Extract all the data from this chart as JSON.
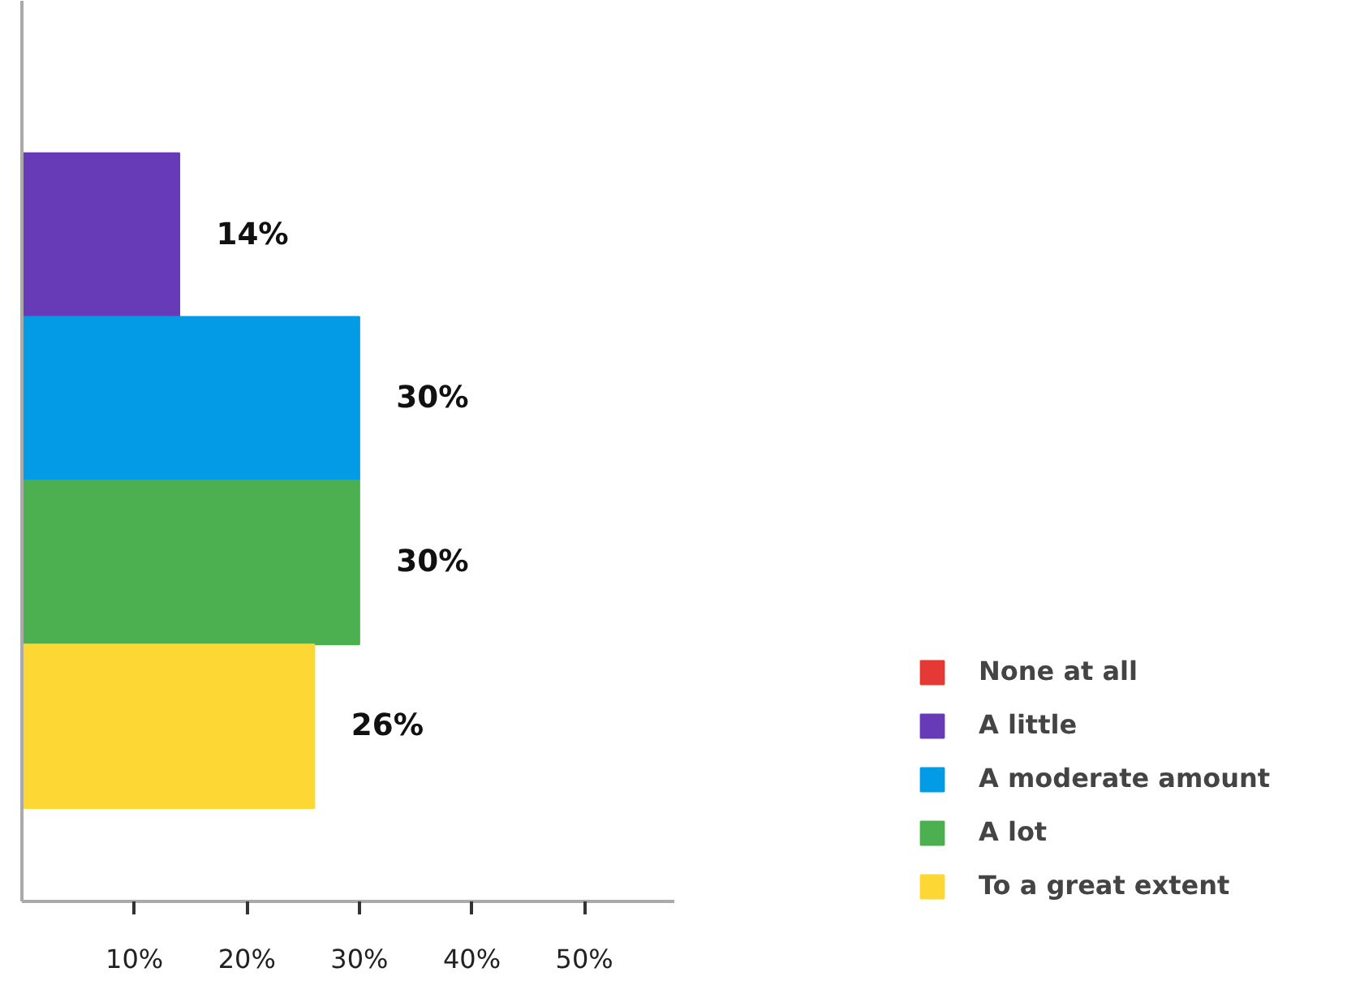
{
  "chart_data": {
    "type": "bar",
    "orientation": "horizontal",
    "categories": [
      null,
      null,
      null,
      null,
      null
    ],
    "series": [
      {
        "name": "None at all",
        "color": "#e53935",
        "values": [
          0,
          null,
          null,
          null,
          null
        ],
        "value_labels": [
          null,
          null,
          null,
          null,
          null
        ]
      },
      {
        "name": "A little",
        "color": "#673ab7",
        "values": [
          null,
          14,
          null,
          null,
          null
        ],
        "value_labels": [
          null,
          "14%",
          null,
          null,
          null
        ]
      },
      {
        "name": "A moderate amount",
        "color": "#039be5",
        "values": [
          null,
          null,
          30,
          null,
          null
        ],
        "value_labels": [
          null,
          null,
          "30%",
          null,
          null
        ]
      },
      {
        "name": "A lot",
        "color": "#4caf50",
        "values": [
          null,
          null,
          null,
          30,
          null
        ],
        "value_labels": [
          null,
          null,
          null,
          "30%",
          null
        ]
      },
      {
        "name": "To a great extent",
        "color": "#fdd835",
        "values": [
          null,
          null,
          null,
          null,
          26
        ],
        "value_labels": [
          null,
          null,
          null,
          null,
          "26%"
        ]
      }
    ],
    "xlim": [
      0,
      58
    ],
    "xticks": [
      {
        "value": 10,
        "label": "10%"
      },
      {
        "value": 20,
        "label": "20%"
      },
      {
        "value": 30,
        "label": "30%"
      },
      {
        "value": 40,
        "label": "40%"
      },
      {
        "value": 50,
        "label": "50%"
      }
    ],
    "tick_labels": "x",
    "grid": false,
    "legend": "right"
  }
}
